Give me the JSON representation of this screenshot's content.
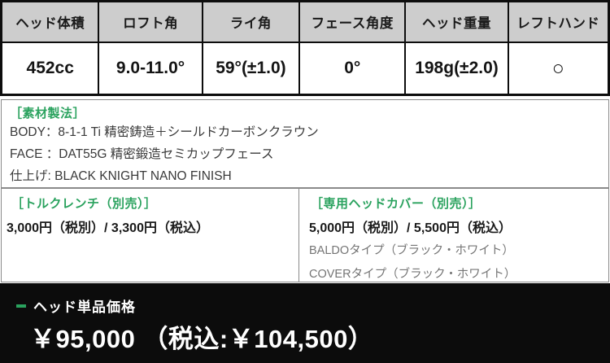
{
  "spec_table": {
    "columns": [
      {
        "header": "ヘッド体積",
        "value": "452cc"
      },
      {
        "header": "ロフト角",
        "value": "9.0-11.0°"
      },
      {
        "header": "ライ角",
        "value": "59°(±1.0)"
      },
      {
        "header": "フェース角度",
        "value": "0°"
      },
      {
        "header": "ヘッド重量",
        "value": "198g(±2.0)"
      },
      {
        "header": "レフトハンド",
        "value": "○"
      }
    ]
  },
  "materials": {
    "title": "［素材製法］",
    "lines": [
      "BODY：8-1-1 Ti 精密鋳造＋シールドカーボンクラウン",
      "FACE ：DAT55G 精密鍛造セミカップフェース",
      "仕上げ: BLACK KNIGHT NANO FINISH"
    ]
  },
  "torque_wrench": {
    "title": "［トルクレンチ（別売）］",
    "price": "3,000円（税別）/ 3,300円（税込）"
  },
  "head_cover": {
    "title": "［専用ヘッドカバー（別売）］",
    "price": "5,000円（税別）/ 5,500円（税込）",
    "options": [
      "BALDOタイプ（ブラック・ホワイト）",
      "COVERタイプ（ブラック・ホワイト）"
    ]
  },
  "price_bar": {
    "label": "ヘッド単品価格",
    "price": "￥95,000 （税込:￥104,500）"
  },
  "colors": {
    "accent_green": "#2aa25e",
    "header_gray": "#cdcdcd",
    "bar_black": "#0c0c0c",
    "thin_border_gray": "#8a8a8a"
  }
}
